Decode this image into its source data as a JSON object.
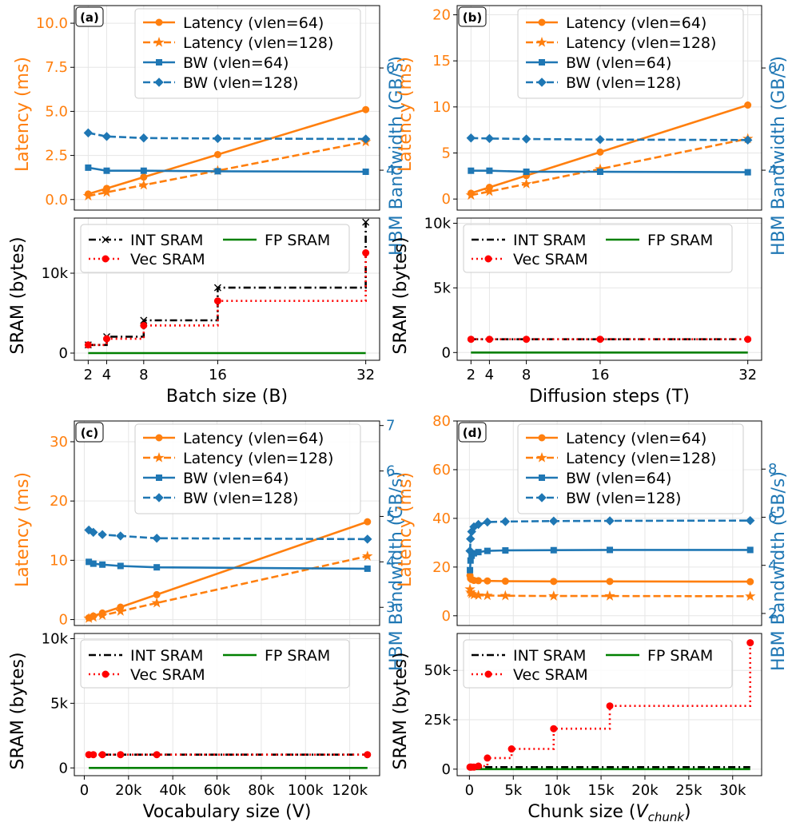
{
  "colors": {
    "orange": "#ff7f0e",
    "blue": "#1f77b4",
    "black": "#000000",
    "red": "#ff0000",
    "green": "#008000",
    "grid": "#e6e6e6"
  },
  "chart_data": [
    {
      "type": "line",
      "panel": "(a)",
      "xlabel": "Batch size (B)",
      "xticks": [
        2,
        4,
        8,
        16,
        32
      ],
      "xtick_labels": [
        "2",
        "4",
        "8",
        "16",
        "32"
      ],
      "xlim": [
        0.5,
        33.5
      ],
      "top": {
        "ylabel_left": "Latency (ms)",
        "ylim_left": [
          -0.6,
          11
        ],
        "yticks_left": [
          0.0,
          2.5,
          5.0,
          7.5,
          10.0
        ],
        "ytick_labels_left": [
          "0.0",
          "2.5",
          "5.0",
          "7.5",
          "10.0"
        ],
        "ylabel_right": "HBM Bandwidth (GB/s)",
        "ylim_right": [
          3.22,
          7.22
        ],
        "yticks_right": [
          4,
          6
        ],
        "ytick_labels_right": [
          "4",
          "6"
        ],
        "legend_position": "top-right",
        "series": [
          {
            "name": "Latency (vlen=64)",
            "axis": "left",
            "color": "orange",
            "dash": "solid",
            "marker": "circle",
            "x": [
              2,
              4,
              8,
              16,
              32
            ],
            "y": [
              0.31,
              0.63,
              1.27,
              2.55,
              5.1
            ]
          },
          {
            "name": "Latency (vlen=128)",
            "axis": "left",
            "color": "orange",
            "dash": "dashed",
            "marker": "star",
            "x": [
              2,
              4,
              8,
              16,
              32
            ],
            "y": [
              0.2,
              0.41,
              0.82,
              1.64,
              3.27
            ]
          },
          {
            "name": "BW (vlen=64)",
            "axis": "right",
            "color": "blue",
            "dash": "solid",
            "marker": "square",
            "x": [
              2,
              4,
              8,
              16,
              32
            ],
            "y": [
              4.05,
              3.99,
              3.99,
              3.98,
              3.97
            ]
          },
          {
            "name": "BW (vlen=128)",
            "axis": "right",
            "color": "blue",
            "dash": "dashed",
            "marker": "diamond",
            "x": [
              2,
              4,
              8,
              16,
              32
            ],
            "y": [
              4.73,
              4.66,
              4.63,
              4.62,
              4.61
            ]
          }
        ]
      },
      "bottom": {
        "ylabel": "SRAM (bytes)",
        "ylim": [
          -900,
          16900
        ],
        "yticks": [
          0,
          10000
        ],
        "ytick_labels": [
          "0",
          "10k"
        ],
        "legend_position": "top-left",
        "series": [
          {
            "name": "INT SRAM",
            "color": "black",
            "dash": "dashdot",
            "marker": "x",
            "step": true,
            "x": [
              2,
              4,
              8,
              16,
              32
            ],
            "y": [
              1024,
              2048,
              4096,
              8192,
              16384
            ]
          },
          {
            "name": "FP SRAM",
            "color": "green",
            "dash": "solid",
            "marker": "none",
            "x": [
              2,
              32
            ],
            "y": [
              0,
              0
            ]
          },
          {
            "name": "Vec SRAM",
            "color": "red",
            "dash": "dotted",
            "marker": "circle",
            "step": true,
            "x": [
              2,
              4,
              8,
              16,
              32
            ],
            "y": [
              1024,
              1792,
              3456,
              6528,
              12544
            ]
          }
        ]
      }
    },
    {
      "type": "line",
      "panel": "(b)",
      "xlabel": "Diffusion steps (T)",
      "xticks": [
        2,
        4,
        8,
        16,
        32
      ],
      "xtick_labels": [
        "2",
        "4",
        "8",
        "16",
        "32"
      ],
      "xlim": [
        0.5,
        33.5
      ],
      "top": {
        "ylabel_left": "Latency (ms)",
        "ylim_left": [
          -1.2,
          21
        ],
        "yticks_left": [
          0,
          5,
          10,
          15,
          20
        ],
        "ytick_labels_left": [
          "0",
          "5",
          "10",
          "15",
          "20"
        ],
        "ylabel_right": "HBM Bandwidth (GB/s)",
        "ylim_right": [
          3.22,
          7.22
        ],
        "yticks_right": [
          4,
          6
        ],
        "ytick_labels_right": [
          "4",
          "6"
        ],
        "legend_position": "top-right",
        "series": [
          {
            "name": "Latency (vlen=64)",
            "axis": "left",
            "color": "orange",
            "dash": "solid",
            "marker": "circle",
            "x": [
              2,
              4,
              8,
              16,
              32
            ],
            "y": [
              0.63,
              1.27,
              2.55,
              5.1,
              10.2
            ]
          },
          {
            "name": "Latency (vlen=128)",
            "axis": "left",
            "color": "orange",
            "dash": "dashed",
            "marker": "star",
            "x": [
              2,
              4,
              8,
              16,
              32
            ],
            "y": [
              0.41,
              0.82,
              1.64,
              3.27,
              6.55
            ]
          },
          {
            "name": "BW (vlen=64)",
            "axis": "right",
            "color": "blue",
            "dash": "solid",
            "marker": "square",
            "x": [
              2,
              4,
              8,
              16,
              32
            ],
            "y": [
              3.99,
              3.99,
              3.97,
              3.97,
              3.96
            ]
          },
          {
            "name": "BW (vlen=128)",
            "axis": "right",
            "color": "blue",
            "dash": "dashed",
            "marker": "diamond",
            "x": [
              2,
              4,
              8,
              16,
              32
            ],
            "y": [
              4.63,
              4.62,
              4.61,
              4.6,
              4.59
            ]
          }
        ]
      },
      "bottom": {
        "ylabel": "SRAM (bytes)",
        "ylim": [
          -600,
          10400
        ],
        "yticks": [
          0,
          5000,
          10000
        ],
        "ytick_labels": [
          "0",
          "5k",
          "10k"
        ],
        "legend_position": "top-left",
        "series": [
          {
            "name": "INT SRAM",
            "color": "black",
            "dash": "dashdot",
            "marker": "none",
            "x": [
              2,
              32
            ],
            "y": [
              1024,
              1024
            ]
          },
          {
            "name": "FP SRAM",
            "color": "green",
            "dash": "solid",
            "marker": "none",
            "x": [
              2,
              32
            ],
            "y": [
              0,
              0
            ]
          },
          {
            "name": "Vec SRAM",
            "color": "red",
            "dash": "dotted",
            "marker": "circle",
            "x": [
              2,
              4,
              8,
              16,
              32
            ],
            "y": [
              1024,
              1024,
              1024,
              1024,
              1024
            ]
          }
        ]
      }
    },
    {
      "type": "line",
      "panel": "(c)",
      "xlabel": "Vocabulary size (V)",
      "xticks": [
        0,
        20000,
        40000,
        60000,
        80000,
        100000,
        120000
      ],
      "xtick_labels": [
        "0",
        "20k",
        "40k",
        "60k",
        "80k",
        "100k",
        "120k"
      ],
      "xlim": [
        -4500,
        133500
      ],
      "top": {
        "ylabel_left": "Latency (ms)",
        "ylim_left": [
          -1,
          33.5
        ],
        "yticks_left": [
          0,
          10,
          20,
          30
        ],
        "ytick_labels_left": [
          "0",
          "10",
          "20",
          "30"
        ],
        "ylabel_right": "HBM Bandwidth (GB/s)",
        "ylim_right": [
          2.6,
          7.1
        ],
        "yticks_right": [
          3,
          4,
          5,
          6,
          7
        ],
        "ytick_labels_right": [
          "3",
          "4",
          "5",
          "6",
          "7"
        ],
        "legend_position": "top-right",
        "series": [
          {
            "name": "Latency (vlen=64)",
            "axis": "left",
            "color": "orange",
            "dash": "solid",
            "marker": "circle",
            "x": [
              2048,
              4096,
              8192,
              16384,
              32768,
              128000
            ],
            "y": [
              0.3,
              0.6,
              1.1,
              2.1,
              4.2,
              16.5
            ]
          },
          {
            "name": "Latency (vlen=128)",
            "axis": "left",
            "color": "orange",
            "dash": "dashed",
            "marker": "star",
            "x": [
              2048,
              4096,
              8192,
              16384,
              32768,
              128000
            ],
            "y": [
              0.2,
              0.4,
              0.7,
              1.4,
              2.8,
              10.7
            ]
          },
          {
            "name": "BW (vlen=64)",
            "axis": "right",
            "color": "blue",
            "dash": "solid",
            "marker": "square",
            "x": [
              2048,
              4096,
              8192,
              16384,
              32768,
              128000
            ],
            "y": [
              4.0,
              3.96,
              3.94,
              3.91,
              3.88,
              3.85
            ]
          },
          {
            "name": "BW (vlen=128)",
            "axis": "right",
            "color": "blue",
            "dash": "dashed",
            "marker": "diamond",
            "x": [
              2048,
              4096,
              8192,
              16384,
              32768,
              128000
            ],
            "y": [
              4.7,
              4.65,
              4.6,
              4.57,
              4.52,
              4.5
            ]
          }
        ]
      },
      "bottom": {
        "ylabel": "SRAM (bytes)",
        "ylim": [
          -600,
          10400
        ],
        "yticks": [
          0,
          5000,
          10000
        ],
        "ytick_labels": [
          "0",
          "5k",
          "10k"
        ],
        "legend_position": "top-left",
        "series": [
          {
            "name": "INT SRAM",
            "color": "black",
            "dash": "dashdot",
            "marker": "none",
            "x": [
              2048,
              128000
            ],
            "y": [
              1024,
              1024
            ]
          },
          {
            "name": "FP SRAM",
            "color": "green",
            "dash": "solid",
            "marker": "none",
            "x": [
              2048,
              128000
            ],
            "y": [
              0,
              0
            ]
          },
          {
            "name": "Vec SRAM",
            "color": "red",
            "dash": "dotted",
            "marker": "circle",
            "x": [
              2048,
              4096,
              8192,
              16384,
              32768,
              128000
            ],
            "y": [
              1024,
              1024,
              1024,
              1024,
              1024,
              1024
            ]
          }
        ]
      }
    },
    {
      "type": "line",
      "panel": "(d)",
      "xlabel": "Chunk size (",
      "xlabel_var": "V",
      "xlabel_sub": "chunk",
      "xlabel_end": ")",
      "xticks": [
        0,
        5000,
        10000,
        15000,
        20000,
        25000,
        30000
      ],
      "xtick_labels": [
        "0",
        "5k",
        "10k",
        "15k",
        "20k",
        "25k",
        "30k"
      ],
      "xlim": [
        -1400,
        33300
      ],
      "top": {
        "ylabel_left": "Latency (ms)",
        "ylim_left": [
          -4,
          80
        ],
        "yticks_left": [
          0,
          20,
          40,
          60,
          80
        ],
        "ytick_labels_left": [
          "0",
          "20",
          "40",
          "60",
          "80"
        ],
        "ylabel_right": "HBM Bandwidth (GB/s)",
        "ylim_right": [
          1.5,
          10.0
        ],
        "yticks_right": [
          2,
          4,
          6,
          8
        ],
        "ytick_labels_right": [
          "2",
          "4",
          "6",
          "8"
        ],
        "legend_position": "top-right",
        "series": [
          {
            "name": "Latency (vlen=64)",
            "axis": "left",
            "color": "orange",
            "dash": "solid",
            "marker": "circle",
            "x": [
              64,
              128,
              256,
              512,
              1024,
              2048,
              4096,
              9600,
              16000,
              32000
            ],
            "y": [
              16.5,
              15.3,
              14.9,
              14.5,
              14.4,
              14.3,
              14.2,
              14.1,
              14.1,
              14.0
            ]
          },
          {
            "name": "Latency (vlen=128)",
            "axis": "left",
            "color": "orange",
            "dash": "dashed",
            "marker": "star",
            "x": [
              64,
              128,
              256,
              512,
              1024,
              2048,
              4096,
              9600,
              16000,
              32000
            ],
            "y": [
              10.9,
              9.6,
              9.0,
              8.6,
              8.4,
              8.3,
              8.2,
              8.1,
              8.1,
              8.0
            ]
          },
          {
            "name": "BW (vlen=64)",
            "axis": "right",
            "color": "blue",
            "dash": "solid",
            "marker": "square",
            "x": [
              64,
              128,
              256,
              512,
              1024,
              2048,
              4096,
              9600,
              16000,
              32000
            ],
            "y": [
              3.8,
              4.2,
              4.4,
              4.5,
              4.55,
              4.6,
              4.62,
              4.63,
              4.64,
              4.64
            ]
          },
          {
            "name": "BW (vlen=128)",
            "axis": "right",
            "color": "blue",
            "dash": "dashed",
            "marker": "diamond",
            "x": [
              64,
              128,
              256,
              512,
              1024,
              2048,
              4096,
              9600,
              16000,
              32000
            ],
            "y": [
              4.6,
              5.1,
              5.4,
              5.6,
              5.7,
              5.8,
              5.82,
              5.84,
              5.85,
              5.86
            ]
          }
        ]
      },
      "bottom": {
        "ylabel": "SRAM (bytes)",
        "ylim": [
          -3300,
          68700
        ],
        "yticks": [
          0,
          25000,
          50000
        ],
        "ytick_labels": [
          "0",
          "25k",
          "50k"
        ],
        "legend_position": "top-left",
        "series": [
          {
            "name": "INT SRAM",
            "color": "black",
            "dash": "dashdot",
            "marker": "none",
            "x": [
              64,
              32000
            ],
            "y": [
              1024,
              1024
            ]
          },
          {
            "name": "FP SRAM",
            "color": "green",
            "dash": "solid",
            "marker": "none",
            "x": [
              64,
              32000
            ],
            "y": [
              0,
              0
            ]
          },
          {
            "name": "Vec SRAM",
            "color": "red",
            "dash": "dotted",
            "marker": "circle",
            "step": true,
            "x": [
              64,
              128,
              256,
              512,
              1024,
              2048,
              4800,
              9600,
              16000,
              32000
            ],
            "y": [
              1024,
              1024,
              1024,
              1024,
              1536,
              5632,
              10240,
              20480,
              32000,
              64000
            ]
          }
        ]
      }
    }
  ]
}
